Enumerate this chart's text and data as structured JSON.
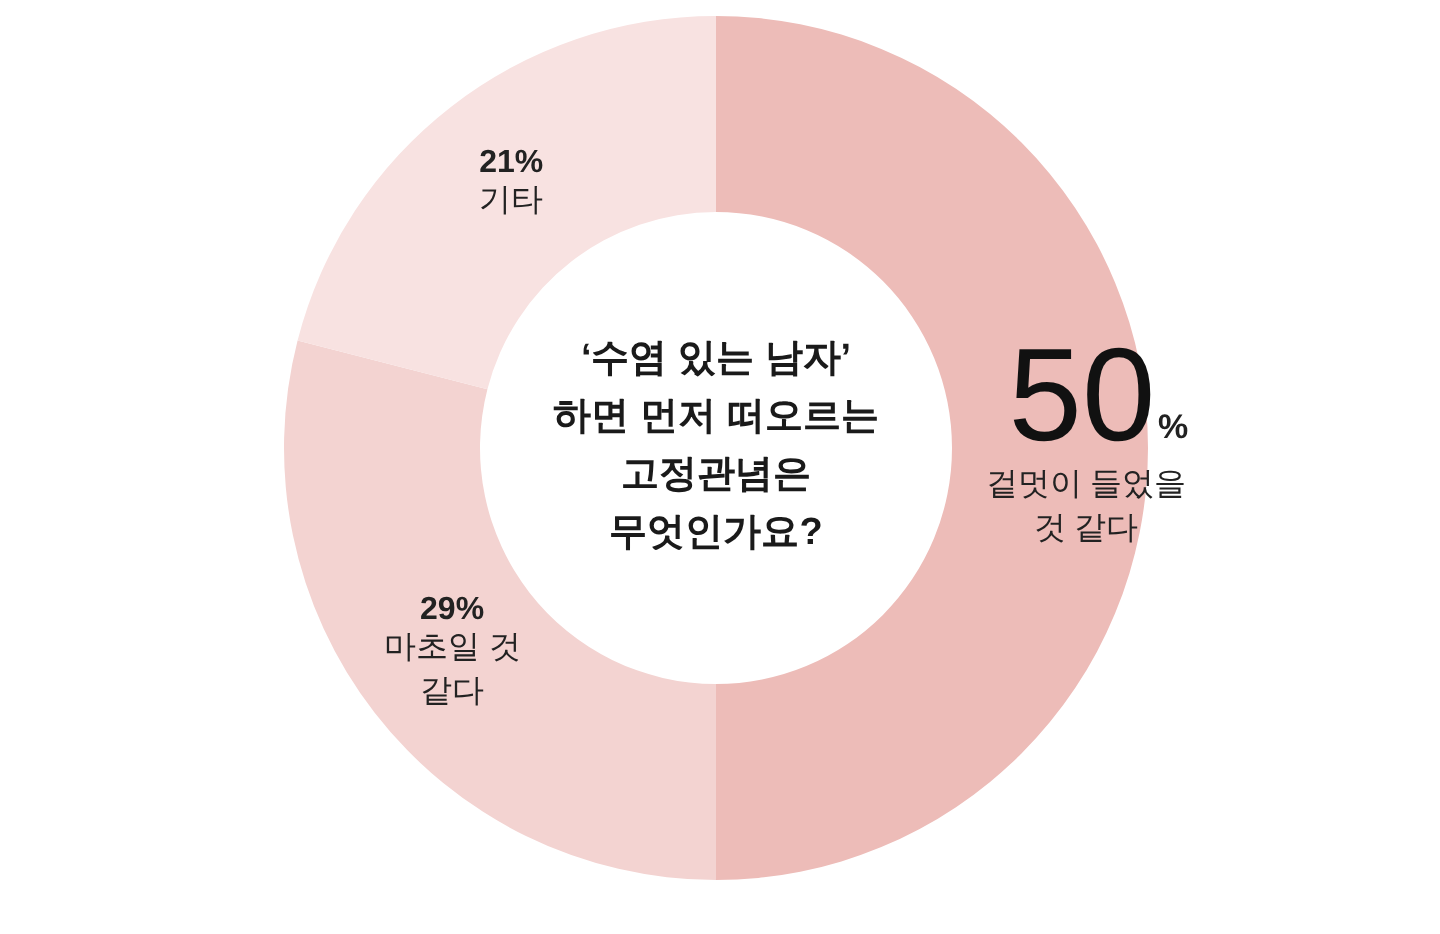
{
  "chart_data": {
    "type": "donut",
    "title": "‘수염 있는 남자’\n하면 먼저 떠오르는\n고정관념은\n무엇인가요?",
    "categories": [
      "겉멋이 들었을 것 같다",
      "마초일 것 같다",
      "기타"
    ],
    "values": [
      50,
      29,
      21
    ],
    "colors": [
      "#edbcb8",
      "#f3d3d1",
      "#f8e2e1"
    ],
    "value_labels": [
      "50%",
      "29%",
      "21%"
    ]
  }
}
